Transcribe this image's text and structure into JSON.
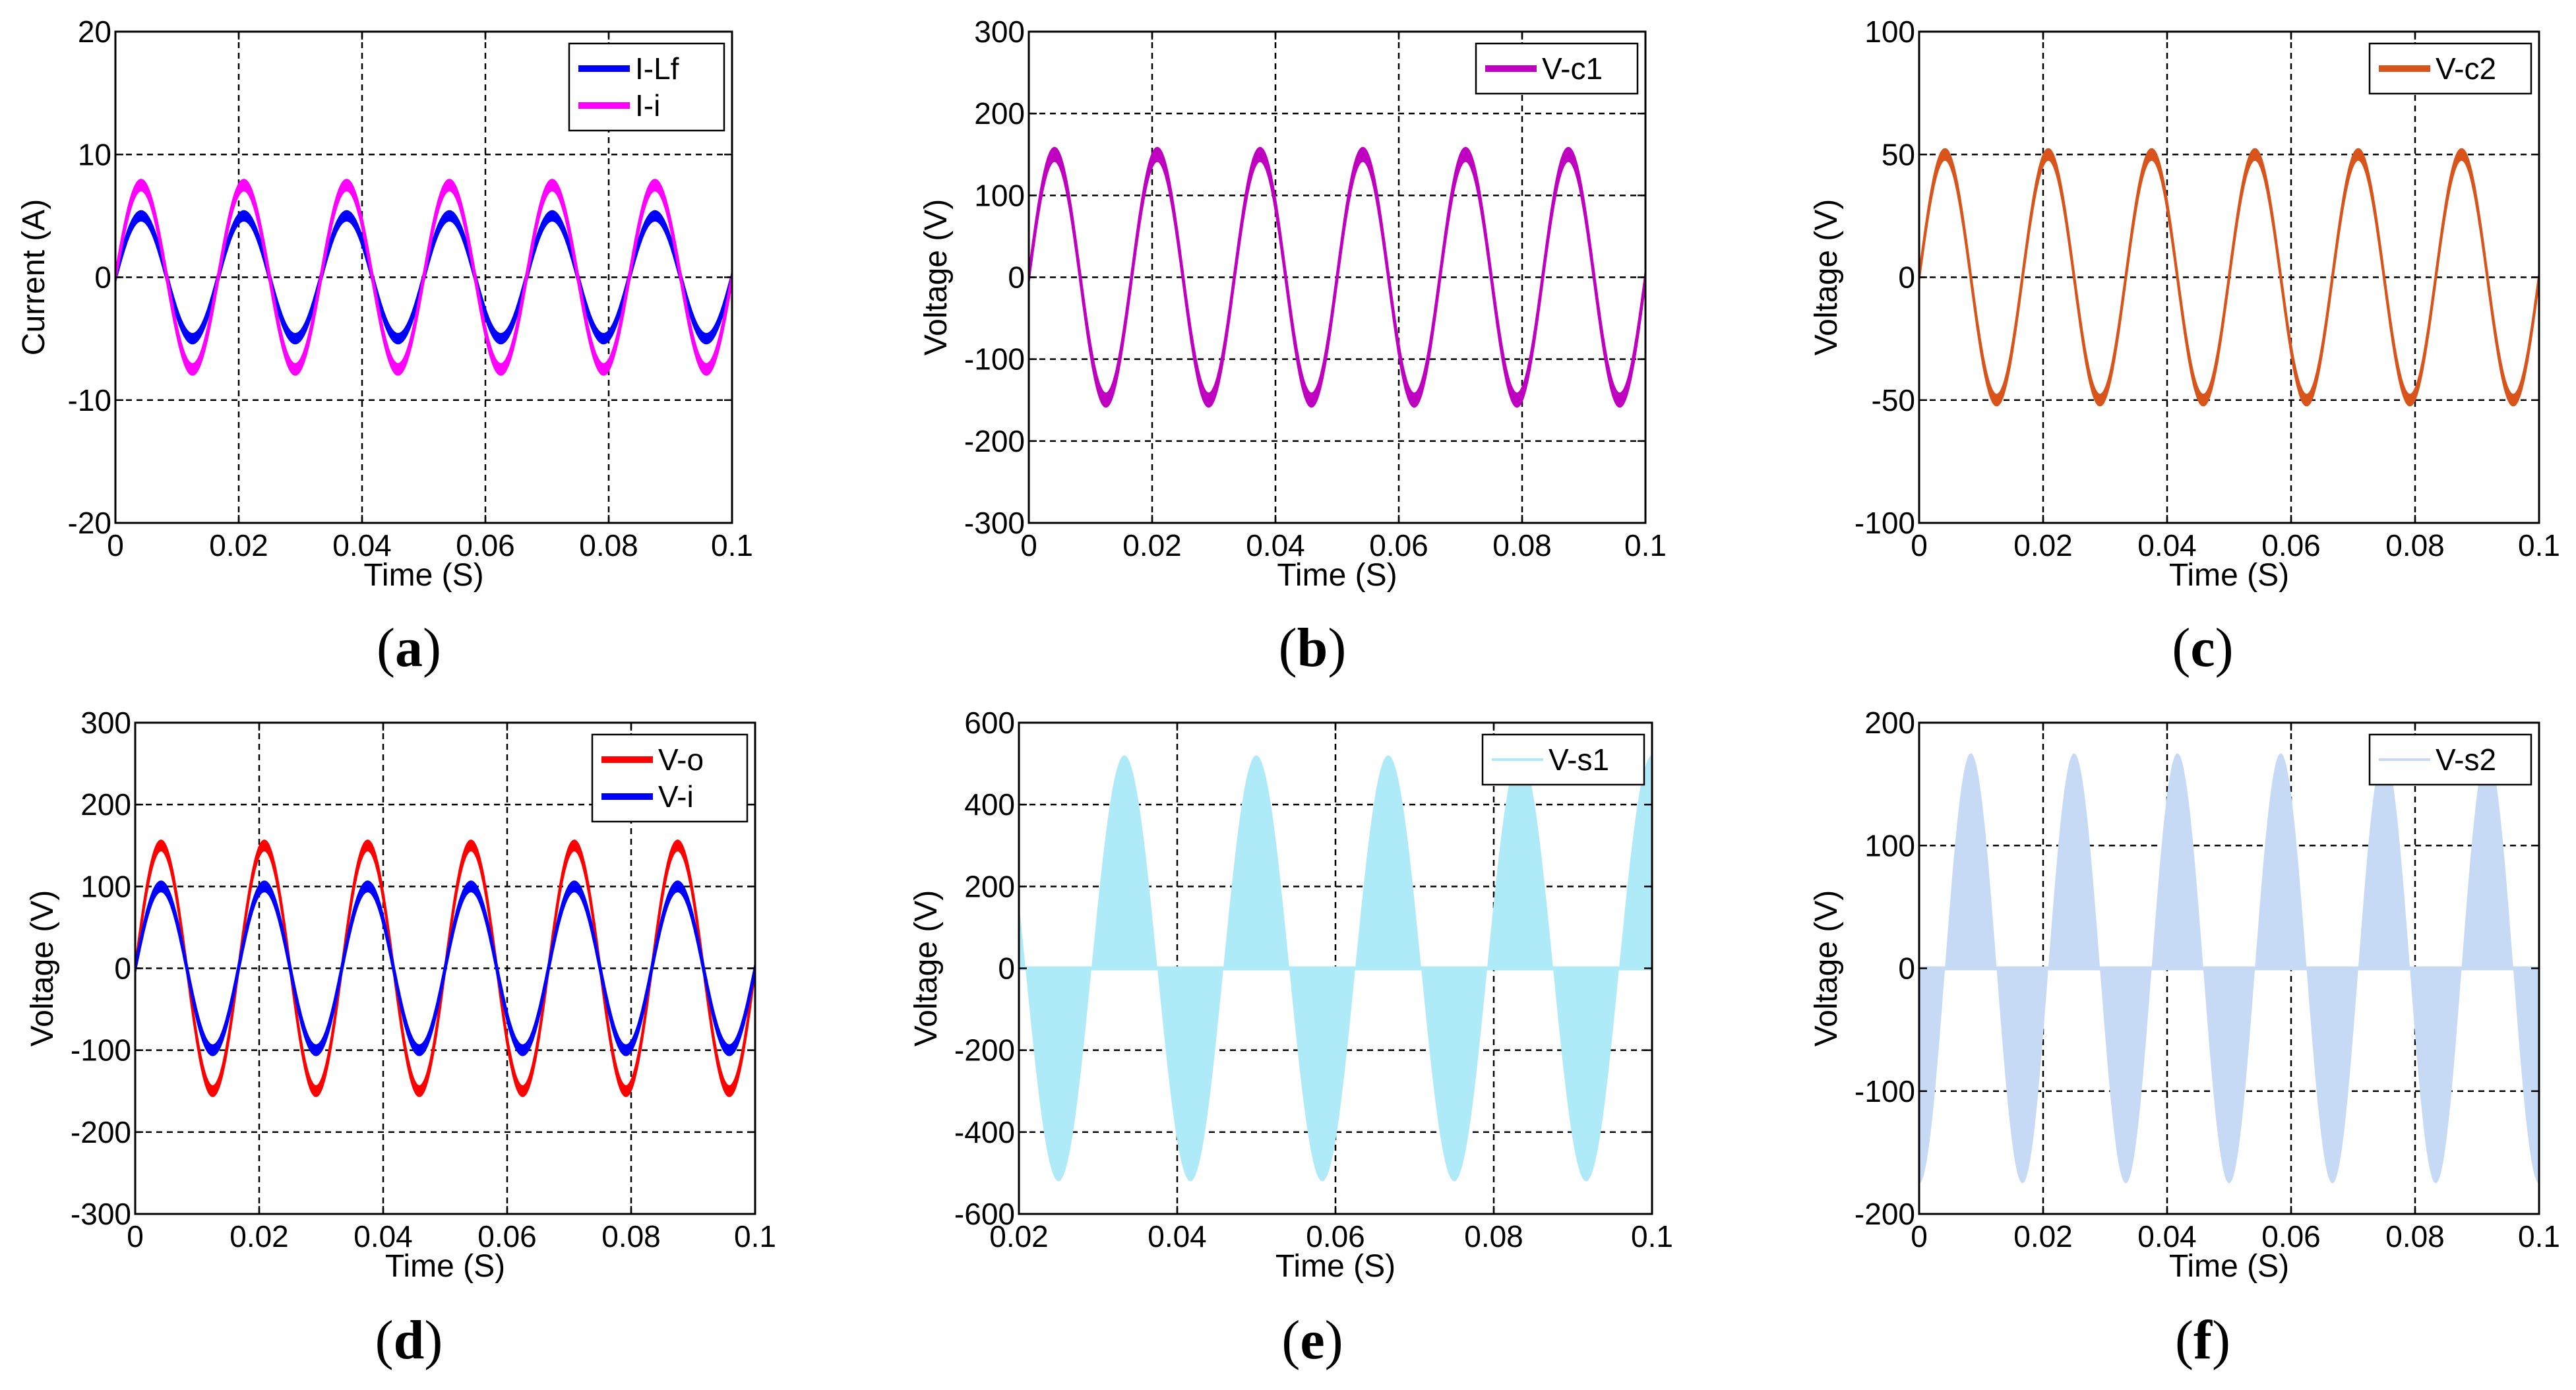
{
  "chart_data": [
    {
      "type": "line",
      "caption_letter": "a",
      "xlabel": "Time (S)",
      "ylabel": "Current (A)",
      "xlim": [
        0,
        0.1
      ],
      "ylim": [
        -20,
        20
      ],
      "xticks": [
        "0",
        "0.02",
        "0.04",
        "0.06",
        "0.08",
        "0.1"
      ],
      "yticks": [
        "-20",
        "-10",
        "0",
        "10",
        "20"
      ],
      "grid": true,
      "legend": "top-right",
      "series": [
        {
          "name": "I-Lf",
          "color": "#0000ff",
          "waveform": "sine",
          "amplitude": 5,
          "frequency": 60,
          "thickness": 0.5
        },
        {
          "name": "I-i",
          "color": "#ff00ff",
          "waveform": "sine",
          "amplitude": 7.5,
          "frequency": 60,
          "thickness": 0.6
        }
      ]
    },
    {
      "type": "line",
      "caption_letter": "b",
      "xlabel": "Time (S)",
      "ylabel": "Voltage (V)",
      "xlim": [
        0,
        0.1
      ],
      "ylim": [
        -300,
        300
      ],
      "xticks": [
        "0",
        "0.02",
        "0.04",
        "0.06",
        "0.08",
        "0.1"
      ],
      "yticks": [
        "-300",
        "-200",
        "-100",
        "0",
        "100",
        "200",
        "300"
      ],
      "grid": true,
      "legend": "top-right",
      "series": [
        {
          "name": "V-c1",
          "color": "#c000c0",
          "waveform": "sine",
          "amplitude": 150,
          "frequency": 60,
          "thickness": 12
        }
      ]
    },
    {
      "type": "line",
      "caption_letter": "c",
      "xlabel": "Time (S)",
      "ylabel": "Voltage (V)",
      "xlim": [
        0,
        0.1
      ],
      "ylim": [
        -100,
        100
      ],
      "xticks": [
        "0",
        "0.02",
        "0.04",
        "0.06",
        "0.08",
        "0.1"
      ],
      "yticks": [
        "-100",
        "-50",
        "0",
        "50",
        "100"
      ],
      "grid": true,
      "legend": "top-right",
      "series": [
        {
          "name": "V-c2",
          "color": "#d9541a",
          "waveform": "sine",
          "amplitude": 50,
          "frequency": 60,
          "thickness": 3
        }
      ]
    },
    {
      "type": "line",
      "caption_letter": "d",
      "xlabel": "Time (S)",
      "ylabel": "Voltage (V)",
      "xlim": [
        0,
        0.1
      ],
      "ylim": [
        -300,
        300
      ],
      "xticks": [
        "0",
        "0.02",
        "0.04",
        "0.06",
        "0.08",
        "0.1"
      ],
      "yticks": [
        "-300",
        "-200",
        "-100",
        "0",
        "100",
        "200",
        "300"
      ],
      "grid": true,
      "legend": "top-right",
      "series": [
        {
          "name": "V-o",
          "color": "#ff0000",
          "waveform": "sine",
          "amplitude": 150,
          "frequency": 60,
          "thickness": 8
        },
        {
          "name": "V-i",
          "color": "#0000ff",
          "waveform": "sine",
          "amplitude": 100,
          "frequency": 60,
          "thickness": 8
        }
      ]
    },
    {
      "type": "area",
      "caption_letter": "e",
      "xlabel": "Time (S)",
      "ylabel": "Voltage (V)",
      "xlim": [
        0.02,
        0.1
      ],
      "ylim": [
        -600,
        600
      ],
      "xticks": [
        "0.02",
        "0.04",
        "0.06",
        "0.08",
        "0.1"
      ],
      "yticks": [
        "-600",
        "-400",
        "-200",
        "0",
        "200",
        "400",
        "600"
      ],
      "grid": true,
      "legend": "top-right",
      "series": [
        {
          "name": "V-s1",
          "color": "#aeeaf7",
          "waveform": "switching-envelope",
          "amplitude": 520,
          "frequency": 60,
          "phase_deg": 90
        }
      ]
    },
    {
      "type": "area",
      "caption_letter": "f",
      "xlabel": "Time (S)",
      "ylabel": "Voltage (V)",
      "xlim": [
        0,
        0.1
      ],
      "ylim": [
        -200,
        200
      ],
      "xticks": [
        "0",
        "0.02",
        "0.04",
        "0.06",
        "0.08",
        "0.1"
      ],
      "yticks": [
        "-200",
        "-100",
        "0",
        "100",
        "200"
      ],
      "grid": true,
      "legend": "top-right",
      "series": [
        {
          "name": "V-s2",
          "color": "#c6daf5",
          "waveform": "switching-envelope",
          "amplitude": 175,
          "frequency": 60,
          "phase_deg": -90
        }
      ]
    }
  ]
}
